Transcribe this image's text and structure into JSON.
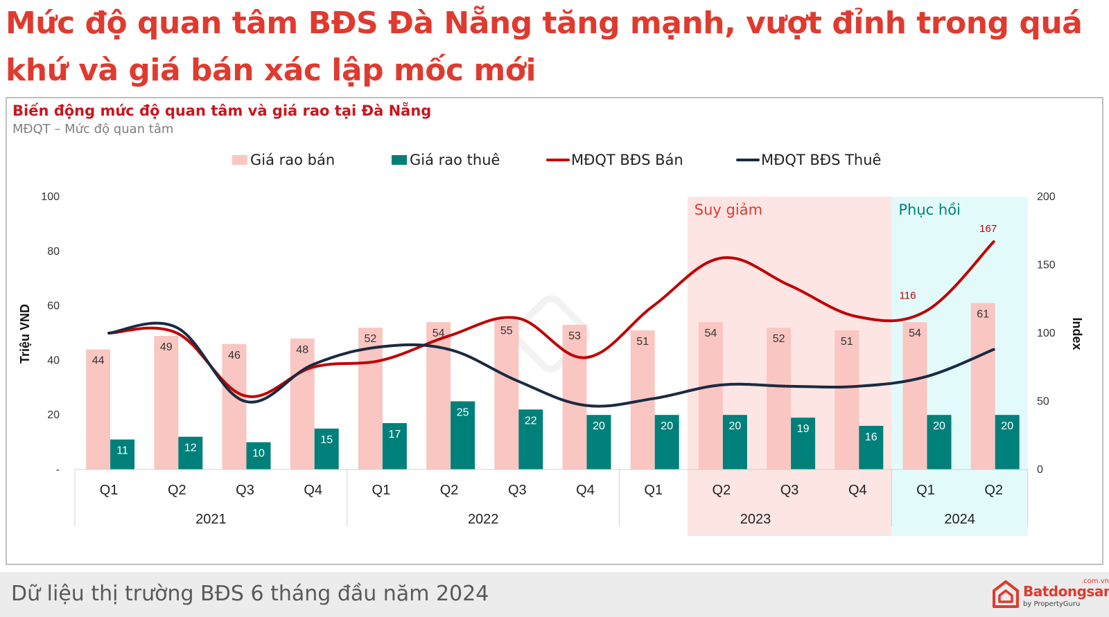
{
  "headline": "Mức độ quan tâm BĐS Đà Nẵng tăng mạnh, vượt đỉnh trong quá khứ và giá bán xác lập mốc mới",
  "footer": {
    "text": "Dữ liệu thị trường BĐS 6 tháng đầu năm 2024",
    "logo_name": "Batdongsan",
    "logo_domain": ".com.vn",
    "logo_sub": "by PropertyGuru",
    "logo_icon": "batdongsan-house-icon"
  },
  "chart_data": {
    "type": "bar",
    "title": "Biến động mức độ quan tâm và giá rao tại Đà Nẵng",
    "subtitle": "MĐQT – Mức độ quan tâm",
    "ylabel_left": "Triệu VND",
    "ylabel_right": "Index",
    "ylim_left": [
      0,
      100
    ],
    "ylim_right": [
      0,
      200
    ],
    "yticks_left": [
      "-",
      "20",
      "40",
      "60",
      "80",
      "100"
    ],
    "yticks_right": [
      "0",
      "50",
      "100",
      "150",
      "200"
    ],
    "categories": [
      "Q1",
      "Q2",
      "Q3",
      "Q4",
      "Q1",
      "Q2",
      "Q3",
      "Q4",
      "Q1",
      "Q2",
      "Q3",
      "Q4",
      "Q1",
      "Q2"
    ],
    "years": [
      {
        "label": "2021",
        "quarters": 4
      },
      {
        "label": "2022",
        "quarters": 4
      },
      {
        "label": "2023",
        "quarters": 4
      },
      {
        "label": "2024",
        "quarters": 2
      }
    ],
    "series": [
      {
        "name": "Giá rao bán",
        "kind": "bar",
        "axis": "left",
        "color": "#f9c6c2",
        "values": [
          44,
          49,
          46,
          48,
          52,
          54,
          55,
          53,
          51,
          54,
          52,
          51,
          54,
          61
        ]
      },
      {
        "name": "Giá rao thuê",
        "kind": "bar",
        "axis": "left",
        "color": "#00807a",
        "values": [
          11,
          12,
          10,
          15,
          17,
          25,
          22,
          20,
          20,
          20,
          19,
          16,
          20,
          20
        ]
      },
      {
        "name": "MĐQT BĐS Bán",
        "kind": "line",
        "axis": "right",
        "color": "#c00000",
        "values": [
          100,
          100,
          54,
          75,
          80,
          98,
          111,
          82,
          120,
          155,
          135,
          112,
          116,
          167
        ]
      },
      {
        "name": "MĐQT BĐS Thuê",
        "kind": "line",
        "axis": "right",
        "color": "#1b2a41",
        "values": [
          100,
          104,
          50,
          77,
          90,
          88,
          65,
          47,
          52,
          62,
          61,
          61,
          68,
          88
        ]
      }
    ],
    "point_labels": [
      {
        "series": "MĐQT BĐS Bán",
        "index": 12,
        "text": "116"
      },
      {
        "series": "MĐQT BĐS Bán",
        "index": 13,
        "text": "167"
      }
    ],
    "regions": [
      {
        "label": "Suy giảm",
        "from_index": 9,
        "to_index": 11,
        "color": "#fde5e3",
        "text_color": "#e03a2f"
      },
      {
        "label": "Phục hồi",
        "from_index": 12,
        "to_index": 13,
        "color": "#e3fafb",
        "text_color": "#00807a"
      }
    ],
    "legend_position": "top",
    "grid": false
  }
}
